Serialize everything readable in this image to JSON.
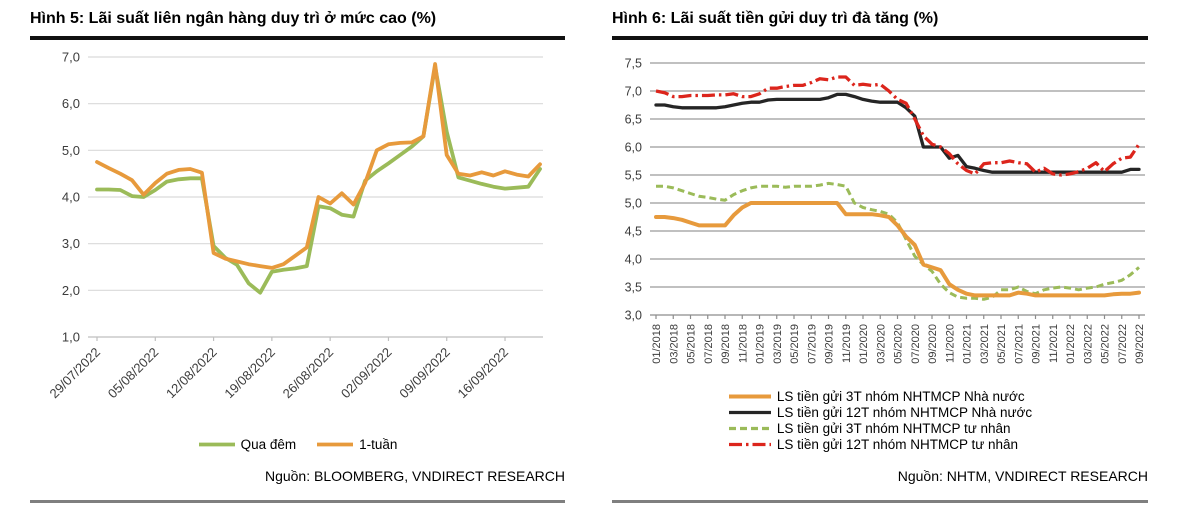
{
  "panels": [
    {
      "title": "Hình 5: Lãi suất liên ngân hàng duy trì ở mức cao (%)",
      "source": "Nguồn: BLOOMBERG, VNDIRECT RESEARCH"
    },
    {
      "title": "Hình 6: Lãi suất tiền gửi duy trì đà tăng (%)",
      "source": "Nguồn: NHTM, VNDIRECT RESEARCH"
    }
  ],
  "chart_data": [
    {
      "type": "line",
      "title": "Hình 5: Lãi suất liên ngân hàng duy trì ở mức cao (%)",
      "ylabel": "%",
      "ylim": [
        1.0,
        7.0
      ],
      "grid": true,
      "legend_position": "bottom",
      "yticks": [
        {
          "v": 1,
          "label": "1,0"
        },
        {
          "v": 2,
          "label": "2,0"
        },
        {
          "v": 3,
          "label": "3,0"
        },
        {
          "v": 4,
          "label": "4,0"
        },
        {
          "v": 5,
          "label": "5,0"
        },
        {
          "v": 6,
          "label": "6,0"
        },
        {
          "v": 7,
          "label": "7,0"
        }
      ],
      "xticks": [
        "29/07/2022",
        "05/08/2022",
        "12/08/2022",
        "19/08/2022",
        "26/08/2022",
        "02/09/2022",
        "09/09/2022",
        "16/09/2022"
      ],
      "x_tick_every": 5,
      "draw_order": [
        0,
        1
      ],
      "legend_order": [
        0,
        1
      ],
      "series": [
        {
          "name": "Qua đêm",
          "color": "#9BBB59",
          "width": 3.8,
          "dash": null,
          "values": [
            4.16,
            4.16,
            4.15,
            4.02,
            4.0,
            4.15,
            4.33,
            4.38,
            4.4,
            4.4,
            2.95,
            2.7,
            2.55,
            2.15,
            1.95,
            2.4,
            2.44,
            2.47,
            2.52,
            3.8,
            3.76,
            3.62,
            3.58,
            4.35,
            4.55,
            4.72,
            4.9,
            5.08,
            5.3,
            6.8,
            5.4,
            4.42,
            4.35,
            4.28,
            4.22,
            4.18,
            4.2,
            4.22,
            4.6
          ]
        },
        {
          "name": "1-tuần",
          "color": "#E79A3C",
          "width": 3.8,
          "dash": null,
          "values": [
            4.75,
            4.62,
            4.5,
            4.36,
            4.05,
            4.3,
            4.5,
            4.58,
            4.6,
            4.52,
            2.8,
            2.68,
            2.62,
            2.56,
            2.52,
            2.48,
            2.56,
            2.74,
            2.92,
            4.0,
            3.86,
            4.08,
            3.84,
            4.3,
            5.0,
            5.13,
            5.16,
            5.17,
            5.3,
            6.85,
            4.9,
            4.5,
            4.46,
            4.53,
            4.46,
            4.55,
            4.48,
            4.44,
            4.7
          ]
        }
      ]
    },
    {
      "type": "line",
      "title": "Hình 6: Lãi suất tiền gửi duy trì đà tăng (%)",
      "ylabel": "%",
      "ylim": [
        3.0,
        7.5
      ],
      "grid": true,
      "legend_position": "bottom",
      "yticks": [
        {
          "v": 3.0,
          "label": "3,0"
        },
        {
          "v": 3.5,
          "label": "3,5"
        },
        {
          "v": 4.0,
          "label": "4,0"
        },
        {
          "v": 4.5,
          "label": "4,5"
        },
        {
          "v": 5.0,
          "label": "5,0"
        },
        {
          "v": 5.5,
          "label": "5,5"
        },
        {
          "v": 6.0,
          "label": "6,0"
        },
        {
          "v": 6.5,
          "label": "6,5"
        },
        {
          "v": 7.0,
          "label": "7,0"
        },
        {
          "v": 7.5,
          "label": "7,5"
        }
      ],
      "xticks": [
        "01/2018",
        "03/2018",
        "05/2018",
        "07/2018",
        "09/2018",
        "11/2018",
        "01/2019",
        "03/2019",
        "05/2019",
        "07/2019",
        "09/2019",
        "11/2019",
        "01/2020",
        "03/2020",
        "05/2020",
        "07/2020",
        "09/2020",
        "11/2020",
        "01/2021",
        "03/2021",
        "05/2021",
        "07/2021",
        "09/2021",
        "11/2021",
        "01/2022",
        "03/2022",
        "05/2022",
        "07/2022",
        "09/2022"
      ],
      "x_tick_every": 2,
      "draw_order": [
        2,
        0,
        1,
        3
      ],
      "legend_order": [
        0,
        1,
        2,
        3
      ],
      "series": [
        {
          "name": "LS tiền gửi 3T nhóm NHTMCP Nhà nước",
          "color": "#E79A3C",
          "width": 4,
          "dash": null,
          "values": [
            4.75,
            4.75,
            4.73,
            4.7,
            4.65,
            4.6,
            4.6,
            4.6,
            4.6,
            4.78,
            4.92,
            5.0,
            5.0,
            5.0,
            5.0,
            5.0,
            5.0,
            5.0,
            5.0,
            5.0,
            5.0,
            5.0,
            4.8,
            4.8,
            4.8,
            4.8,
            4.78,
            4.75,
            4.6,
            4.4,
            4.25,
            3.9,
            3.85,
            3.8,
            3.55,
            3.45,
            3.38,
            3.35,
            3.35,
            3.35,
            3.35,
            3.35,
            3.4,
            3.38,
            3.35,
            3.35,
            3.35,
            3.35,
            3.35,
            3.35,
            3.35,
            3.35,
            3.35,
            3.37,
            3.38,
            3.38,
            3.4
          ]
        },
        {
          "name": "LS tiền gửi 12T nhóm NHTMCP Nhà nước",
          "color": "#252525",
          "width": 3.3,
          "dash": null,
          "values": [
            6.75,
            6.75,
            6.72,
            6.7,
            6.7,
            6.7,
            6.7,
            6.7,
            6.72,
            6.75,
            6.78,
            6.8,
            6.8,
            6.84,
            6.85,
            6.85,
            6.85,
            6.85,
            6.85,
            6.85,
            6.88,
            6.94,
            6.94,
            6.9,
            6.85,
            6.82,
            6.8,
            6.8,
            6.8,
            6.7,
            6.55,
            6.0,
            6.0,
            6.0,
            5.8,
            5.85,
            5.65,
            5.62,
            5.58,
            5.55,
            5.55,
            5.55,
            5.55,
            5.55,
            5.55,
            5.55,
            5.55,
            5.55,
            5.55,
            5.55,
            5.55,
            5.55,
            5.55,
            5.55,
            5.55,
            5.6,
            5.6
          ]
        },
        {
          "name": "LS tiền gửi 3T nhóm NHTMCP tư nhân",
          "color": "#9BBB59",
          "width": 3,
          "dash": "7 4",
          "values": [
            5.3,
            5.3,
            5.27,
            5.22,
            5.17,
            5.12,
            5.1,
            5.07,
            5.05,
            5.15,
            5.22,
            5.27,
            5.3,
            5.3,
            5.3,
            5.28,
            5.3,
            5.3,
            5.3,
            5.32,
            5.35,
            5.33,
            5.3,
            5.0,
            4.92,
            4.88,
            4.85,
            4.8,
            4.65,
            4.35,
            4.05,
            3.9,
            3.78,
            3.55,
            3.4,
            3.32,
            3.3,
            3.3,
            3.28,
            3.32,
            3.45,
            3.45,
            3.5,
            3.42,
            3.38,
            3.45,
            3.48,
            3.5,
            3.48,
            3.45,
            3.48,
            3.5,
            3.55,
            3.58,
            3.62,
            3.72,
            3.85
          ]
        },
        {
          "name": "LS tiền gửi 12T nhóm NHTMCP tư nhân",
          "color": "#DC251C",
          "width": 3.3,
          "dash": "13 4 2.5 4",
          "values": [
            7.0,
            6.97,
            6.9,
            6.9,
            6.92,
            6.92,
            6.92,
            6.93,
            6.93,
            6.95,
            6.9,
            6.9,
            6.95,
            7.05,
            7.05,
            7.08,
            7.1,
            7.1,
            7.15,
            7.22,
            7.2,
            7.25,
            7.25,
            7.1,
            7.12,
            7.1,
            7.12,
            7.0,
            6.85,
            6.78,
            6.5,
            6.2,
            6.05,
            6.0,
            5.88,
            5.7,
            5.58,
            5.52,
            5.7,
            5.72,
            5.72,
            5.75,
            5.72,
            5.7,
            5.55,
            5.62,
            5.52,
            5.5,
            5.52,
            5.56,
            5.62,
            5.72,
            5.56,
            5.7,
            5.8,
            5.82,
            6.05
          ]
        }
      ]
    }
  ]
}
